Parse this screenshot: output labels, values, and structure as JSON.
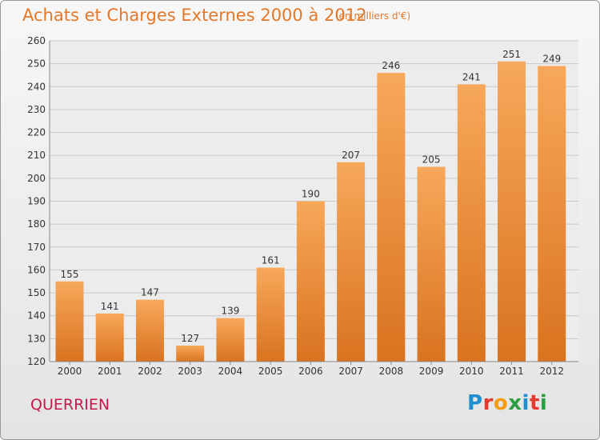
{
  "header": {
    "title": "Achats et Charges Externes 2000 à 2012",
    "unit": "(en milliers d'€)"
  },
  "footer": {
    "town": "QUERRIEN",
    "brand": "Proxiti"
  },
  "colors": {
    "title": "#e2782a",
    "town": "#c8184a",
    "bar_light": "#f7a85a",
    "bar_dark": "#d9731f",
    "logo": [
      "#1f8fd0",
      "#e63a2e",
      "#f39c12",
      "#2e9e44",
      "#1f8fd0",
      "#e63a2e",
      "#2e9e44"
    ]
  },
  "chart_data": {
    "type": "bar",
    "title": "Achats et Charges Externes 2000 à 2012",
    "subtitle": "(en milliers d'€)",
    "categories": [
      "2000",
      "2001",
      "2002",
      "2003",
      "2004",
      "2005",
      "2006",
      "2007",
      "2008",
      "2009",
      "2010",
      "2011",
      "2012"
    ],
    "values": [
      155,
      141,
      147,
      127,
      139,
      161,
      190,
      207,
      246,
      205,
      241,
      251,
      249
    ],
    "ylim": [
      120,
      260
    ],
    "yticks": [
      120,
      130,
      140,
      150,
      160,
      170,
      180,
      190,
      200,
      210,
      220,
      230,
      240,
      250,
      260
    ],
    "grid": true,
    "data_labels": true
  }
}
